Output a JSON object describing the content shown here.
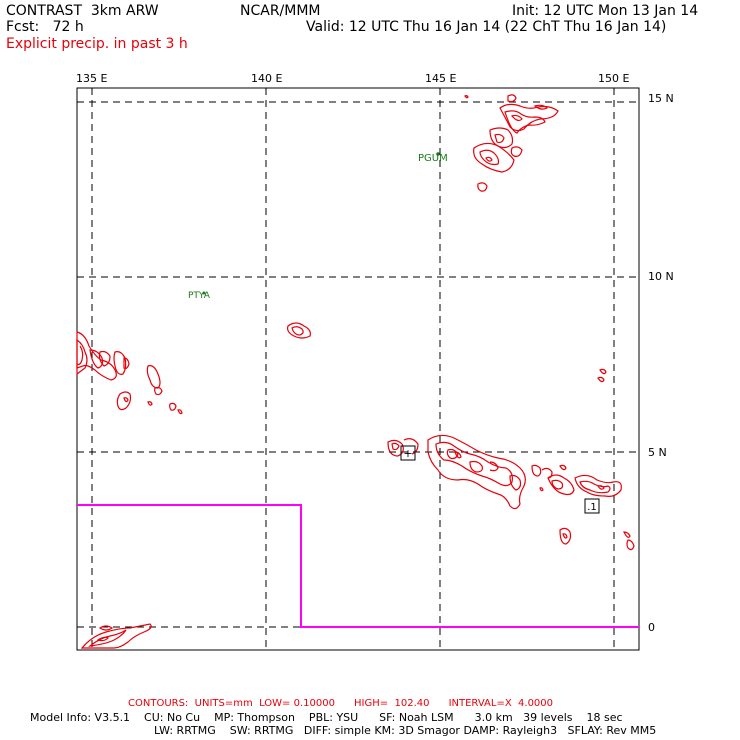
{
  "header": {
    "model": "CONTRAST  3km ARW",
    "center": "NCAR/MMM",
    "init": "Init: 12 UTC Mon 13 Jan 14",
    "fcst": "Fcst:   72 h",
    "valid": "Valid: 12 UTC Thu 16 Jan 14 (22 ChT Thu 16 Jan 14)",
    "field": "Explicit precip. in past 3 h"
  },
  "map": {
    "lon_labels": [
      "135 E",
      "140 E",
      "145 E",
      "150 E"
    ],
    "lat_labels": [
      "15 N",
      "10 N",
      "5 N",
      "0"
    ],
    "stations": [
      "PGUM",
      "PTYA"
    ],
    "markers": [
      "+",
      ".1"
    ],
    "colors": {
      "precip": "#e8000b",
      "boundary": "#ff00ff",
      "station": "#1a7a1a"
    }
  },
  "footer": {
    "contours": "CONTOURS:  UNITS=mm  LOW= 0.10000      HIGH=  102.40      INTERVAL=X  4.0000",
    "info1": "Model Info: V3.5.1    CU: No Cu    MP: Thompson    PBL: YSU      SF: Noah LSM      3.0 km   39 levels    18 sec",
    "info2": "LW: RRTMG    SW: RRTMG   DIFF: simple KM: 3D Smagor DAMP: Rayleigh3   SFLAY: Rev MM5"
  }
}
